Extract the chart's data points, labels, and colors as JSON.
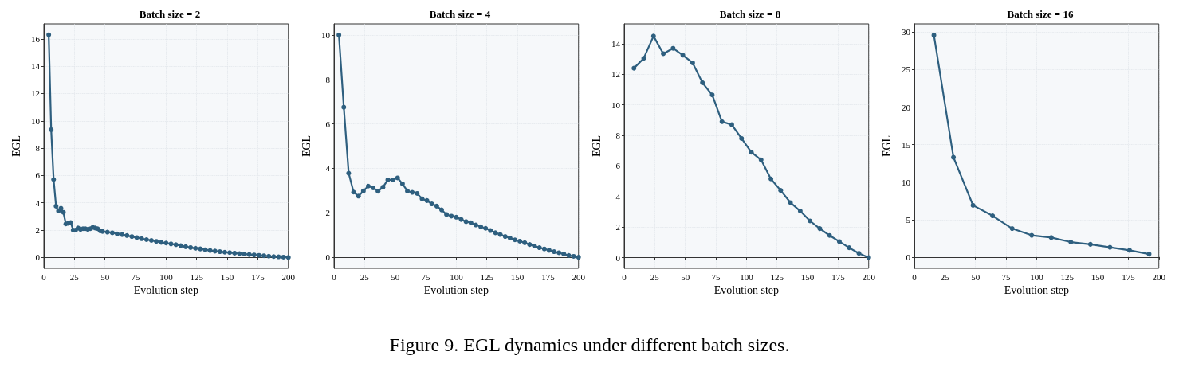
{
  "chart_data": [
    {
      "type": "line",
      "title": "Batch size = 2",
      "xlabel": "Evolution step",
      "ylabel": "EGL",
      "xlim": [
        0,
        200
      ],
      "xticks": [
        0,
        25,
        50,
        75,
        100,
        125,
        150,
        175,
        200
      ],
      "ylim": [
        -0.8,
        17.1
      ],
      "yticks": [
        0,
        2,
        4,
        6,
        8,
        10,
        12,
        14,
        16
      ],
      "grid": true,
      "marker": "circle",
      "line_style": "solid",
      "x": [
        4,
        6,
        8,
        10,
        12,
        14,
        16,
        18,
        20,
        22,
        24,
        26,
        28,
        30,
        32,
        34,
        36,
        38,
        40,
        42,
        44,
        46,
        48,
        52,
        56,
        60,
        64,
        68,
        72,
        76,
        80,
        84,
        88,
        92,
        96,
        100,
        104,
        108,
        112,
        116,
        120,
        124,
        128,
        132,
        136,
        140,
        144,
        148,
        152,
        156,
        160,
        164,
        168,
        172,
        176,
        180,
        184,
        188,
        192,
        196,
        200
      ],
      "series": [
        {
          "color": "#2e5f7f",
          "values": [
            16.3,
            9.35,
            5.7,
            3.75,
            3.4,
            3.6,
            3.3,
            2.45,
            2.5,
            2.55,
            2.0,
            2.0,
            2.15,
            2.05,
            2.1,
            2.1,
            2.05,
            2.1,
            2.2,
            2.15,
            2.1,
            1.95,
            1.9,
            1.85,
            1.8,
            1.72,
            1.67,
            1.6,
            1.52,
            1.45,
            1.37,
            1.3,
            1.24,
            1.17,
            1.1,
            1.05,
            0.99,
            0.93,
            0.86,
            0.78,
            0.72,
            0.67,
            0.62,
            0.56,
            0.5,
            0.46,
            0.42,
            0.38,
            0.35,
            0.31,
            0.28,
            0.25,
            0.21,
            0.18,
            0.15,
            0.12,
            0.09,
            0.06,
            0.04,
            0.02,
            0.0
          ]
        }
      ]
    },
    {
      "type": "line",
      "title": "Batch size = 4",
      "xlabel": "Evolution step",
      "ylabel": "EGL",
      "xlim": [
        0,
        200
      ],
      "xticks": [
        0,
        25,
        50,
        75,
        100,
        125,
        150,
        175,
        200
      ],
      "ylim": [
        -0.5,
        10.5
      ],
      "yticks": [
        0,
        2,
        4,
        6,
        8,
        10
      ],
      "grid": true,
      "marker": "circle",
      "line_style": "solid",
      "x": [
        4,
        8,
        12,
        16,
        20,
        24,
        28,
        32,
        36,
        40,
        44,
        48,
        52,
        56,
        60,
        64,
        68,
        72,
        76,
        80,
        84,
        88,
        92,
        96,
        100,
        104,
        108,
        112,
        116,
        120,
        124,
        128,
        132,
        136,
        140,
        144,
        148,
        152,
        156,
        160,
        164,
        168,
        172,
        176,
        180,
        184,
        188,
        192,
        196,
        200
      ],
      "series": [
        {
          "color": "#2e5f7f",
          "values": [
            10.0,
            6.75,
            3.78,
            2.93,
            2.75,
            2.98,
            3.2,
            3.12,
            2.97,
            3.15,
            3.48,
            3.48,
            3.57,
            3.3,
            2.98,
            2.92,
            2.87,
            2.63,
            2.55,
            2.4,
            2.3,
            2.13,
            1.92,
            1.85,
            1.8,
            1.7,
            1.6,
            1.55,
            1.45,
            1.37,
            1.3,
            1.2,
            1.1,
            1.02,
            0.93,
            0.86,
            0.78,
            0.72,
            0.65,
            0.57,
            0.5,
            0.43,
            0.37,
            0.31,
            0.25,
            0.2,
            0.14,
            0.08,
            0.04,
            0.0
          ]
        }
      ]
    },
    {
      "type": "line",
      "title": "Batch size = 8",
      "xlabel": "Evolution step",
      "ylabel": "EGL",
      "xlim": [
        0,
        200
      ],
      "xticks": [
        0,
        25,
        50,
        75,
        100,
        125,
        150,
        175,
        200
      ],
      "ylim": [
        -0.7,
        15.3
      ],
      "yticks": [
        0,
        2,
        4,
        6,
        8,
        10,
        12,
        14
      ],
      "grid": true,
      "marker": "circle",
      "line_style": "solid",
      "x": [
        8,
        16,
        24,
        32,
        40,
        48,
        56,
        64,
        72,
        80,
        88,
        96,
        104,
        112,
        120,
        128,
        136,
        144,
        152,
        160,
        168,
        176,
        184,
        192,
        200
      ],
      "series": [
        {
          "color": "#2e5f7f",
          "values": [
            12.4,
            13.05,
            14.5,
            13.35,
            13.7,
            13.25,
            12.75,
            11.45,
            10.65,
            8.9,
            8.7,
            7.8,
            6.9,
            6.4,
            5.15,
            4.4,
            3.6,
            3.05,
            2.4,
            1.9,
            1.45,
            1.05,
            0.65,
            0.28,
            0.0
          ]
        }
      ]
    },
    {
      "type": "line",
      "title": "Batch size = 16",
      "xlabel": "Evolution step",
      "ylabel": "EGL",
      "xlim": [
        0,
        200
      ],
      "xticks": [
        0,
        25,
        50,
        75,
        100,
        125,
        150,
        175,
        200
      ],
      "ylim": [
        -1.5,
        31.1
      ],
      "yticks": [
        0,
        5,
        10,
        15,
        20,
        25,
        30
      ],
      "grid": true,
      "marker": "circle",
      "line_style": "solid",
      "x": [
        16,
        32,
        48,
        64,
        80,
        96,
        112,
        128,
        144,
        160,
        176,
        192
      ],
      "series": [
        {
          "color": "#2e5f7f",
          "values": [
            29.6,
            13.3,
            6.9,
            5.5,
            3.8,
            2.9,
            2.6,
            2.0,
            1.7,
            1.3,
            0.9,
            0.4
          ]
        }
      ],
      "annotations": [
        "Figure 9. EGL dynamics under different batch sizes."
      ]
    }
  ]
}
